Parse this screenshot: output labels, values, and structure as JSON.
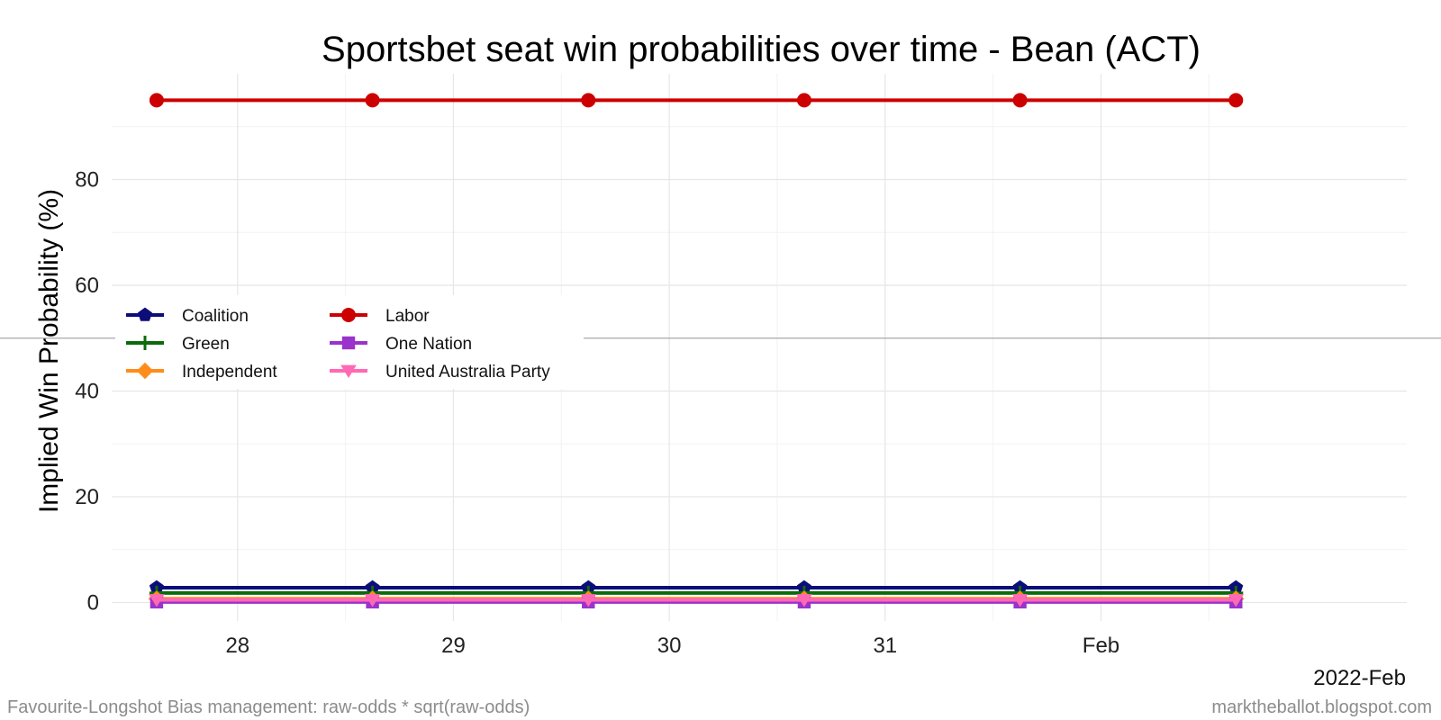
{
  "chart_data": {
    "type": "line",
    "title": "Sportsbet seat win probabilities over time - Bean (ACT)",
    "ylabel": "Implied Win Probability (%)",
    "xlabel": "",
    "x_axis_year_label": "2022-Feb",
    "x_tick_labels": [
      "28",
      "29",
      "30",
      "31",
      "Feb"
    ],
    "x_tick_dates": [
      "2022-01-28",
      "2022-01-29",
      "2022-01-30",
      "2022-01-31",
      "2022-02-01"
    ],
    "y_tick_labels": [
      "0",
      "20",
      "40",
      "60",
      "80"
    ],
    "y_tick_values": [
      0,
      20,
      40,
      60,
      80
    ],
    "ylim": [
      -3.5,
      100
    ],
    "xlim": [
      "2022-01-27 10:00",
      "2022-02-02 10:00"
    ],
    "grid": true,
    "reference_line_y": 50,
    "legend_placement": "left, inside plot, two columns",
    "x": [
      "2022-01-27 15:00",
      "2022-01-28 15:00",
      "2022-01-29 15:00",
      "2022-01-30 15:00",
      "2022-01-31 15:00",
      "2022-02-01 15:00"
    ],
    "series": [
      {
        "name": "Coalition",
        "color": "#0d0d7a",
        "marker": "pentagon",
        "values": [
          2.8,
          2.8,
          2.8,
          2.8,
          2.8,
          2.8
        ]
      },
      {
        "name": "Labor",
        "color": "#cc0000",
        "marker": "circle",
        "values": [
          95,
          95,
          95,
          95,
          95,
          95
        ]
      },
      {
        "name": "Green",
        "color": "#0b6b0b",
        "marker": "plus",
        "values": [
          1.8,
          1.8,
          1.8,
          1.8,
          1.8,
          1.8
        ]
      },
      {
        "name": "One Nation",
        "color": "#9933cc",
        "marker": "square",
        "values": [
          0.1,
          0.1,
          0.1,
          0.1,
          0.1,
          0.1
        ]
      },
      {
        "name": "Independent",
        "color": "#ff8c1a",
        "marker": "diamond",
        "values": [
          0.7,
          0.7,
          0.7,
          0.7,
          0.7,
          0.7
        ]
      },
      {
        "name": "United Australia Party",
        "color": "#ff69b4",
        "marker": "triangle-down",
        "values": [
          0.5,
          0.5,
          0.5,
          0.5,
          0.5,
          0.5
        ]
      }
    ]
  },
  "footer": {
    "left": "Favourite-Longshot Bias management: raw-odds * sqrt(raw-odds)",
    "right": "marktheballot.blogspot.com"
  }
}
